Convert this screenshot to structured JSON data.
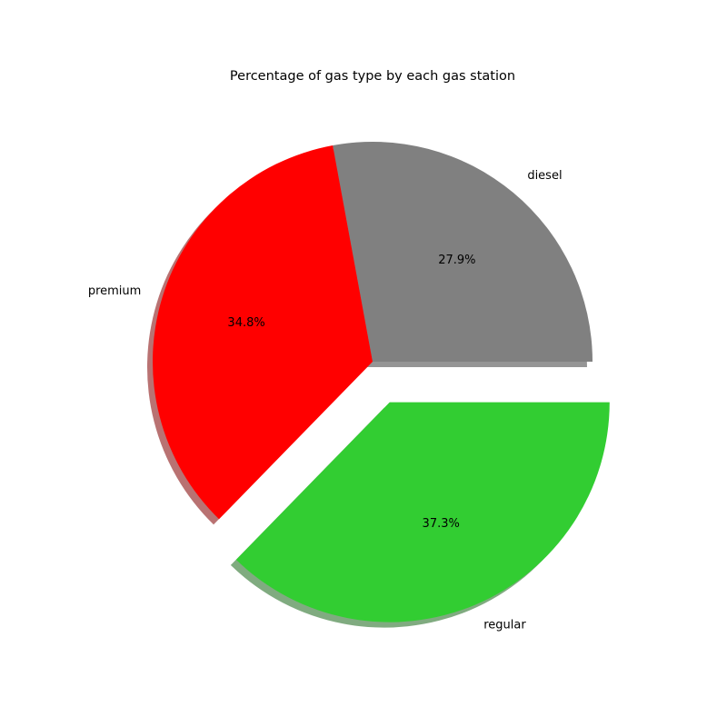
{
  "chart_data": {
    "type": "pie",
    "title": "Percentage of gas type by each gas station",
    "slices": [
      {
        "label": "diesel",
        "value": 27.9,
        "pct_label": "27.9%",
        "color": "#808080",
        "explode": false
      },
      {
        "label": "premium",
        "value": 34.8,
        "pct_label": "34.8%",
        "color": "#ff0000",
        "explode": false
      },
      {
        "label": "regular",
        "value": 37.3,
        "pct_label": "37.3%",
        "color": "#32cd32",
        "explode": true
      }
    ],
    "start_angle_deg": 0,
    "direction": "counterclockwise",
    "shadow": true,
    "legend": false
  }
}
